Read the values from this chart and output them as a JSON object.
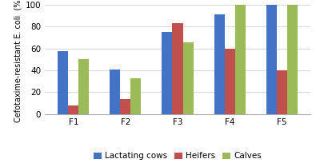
{
  "categories": [
    "F1",
    "F2",
    "F3",
    "F4",
    "F5"
  ],
  "series": {
    "Lactating cows": [
      58,
      41,
      75,
      91,
      100
    ],
    "Heifers": [
      8,
      14,
      83,
      60,
      40
    ],
    "Calves": [
      50,
      33,
      66,
      100,
      100
    ]
  },
  "colors": {
    "Lactating cows": "#4472C4",
    "Heifers": "#C0504D",
    "Calves": "#9BBB59"
  },
  "ylabel": "Cefotaxime-resistant E. coli  (%)",
  "ylim": [
    0,
    100
  ],
  "yticks": [
    0,
    20,
    40,
    60,
    80,
    100
  ],
  "background_color": "#FFFFFF",
  "grid_color": "#D9D9D9",
  "bar_width": 0.2,
  "legend_labels": [
    "Lactating cows",
    "Heifers",
    "Calves"
  ],
  "ylabel_fontsize": 7,
  "tick_fontsize": 7.5,
  "legend_fontsize": 7.5
}
